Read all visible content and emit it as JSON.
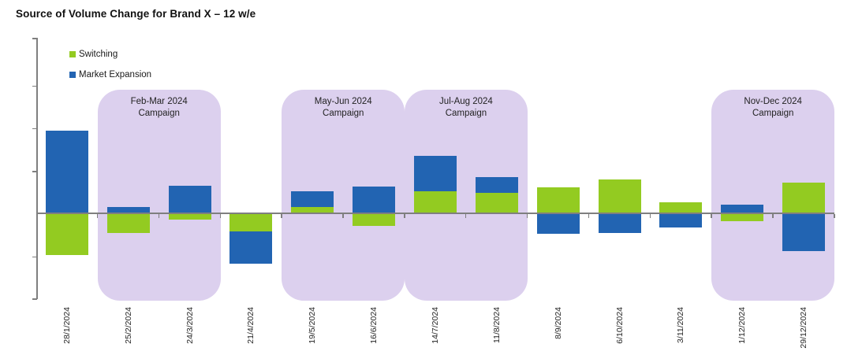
{
  "title": "Source of Volume Change for Brand X – 12 w/e",
  "legend": {
    "items": [
      {
        "label": "Switching",
        "color": "#93cb21"
      },
      {
        "label": "Market Expansion",
        "color": "#2264b2"
      }
    ]
  },
  "chart_data": {
    "type": "bar",
    "stacked": true,
    "title": "Source of Volume Change for Brand X – 12 w/e",
    "xlabel": "",
    "ylabel": "",
    "y_axis_labeled": false,
    "ylim": [
      -2,
      4.1
    ],
    "grid": false,
    "legend_position": "top-left",
    "categories": [
      "28/1/2024",
      "25/2/2024",
      "24/3/2024",
      "21/4/2024",
      "19/5/2024",
      "16/6/2024",
      "14/7/2024",
      "11/8/2024",
      "8/9/2024",
      "6/10/2024",
      "3/11/2024",
      "1/12/2024",
      "29/12/2024"
    ],
    "series": [
      {
        "name": "Switching",
        "color": "#93cb21",
        "values": [
          -0.98,
          -0.46,
          -0.15,
          -0.42,
          0.14,
          -0.3,
          0.51,
          0.48,
          0.6,
          0.79,
          0.26,
          -0.18,
          0.71
        ]
      },
      {
        "name": "Market Expansion",
        "color": "#2264b2",
        "values": [
          1.93,
          0.14,
          0.64,
          -0.75,
          0.38,
          0.63,
          0.83,
          0.36,
          -0.47,
          -0.46,
          -0.34,
          0.2,
          -0.88
        ]
      }
    ],
    "campaign_fill": "#dcd0ee",
    "campaigns": [
      {
        "text": "Feb-Mar 2024\nCampaign",
        "start_index": 1,
        "end_index": 2
      },
      {
        "text": "May-Jun 2024\nCampaign",
        "start_index": 4,
        "end_index": 5
      },
      {
        "text": "Jul-Aug 2024\nCampaign",
        "start_index": 6,
        "end_index": 7
      },
      {
        "text": "Nov-Dec 2024\nCampaign",
        "start_index": 11,
        "end_index": 12
      }
    ]
  }
}
